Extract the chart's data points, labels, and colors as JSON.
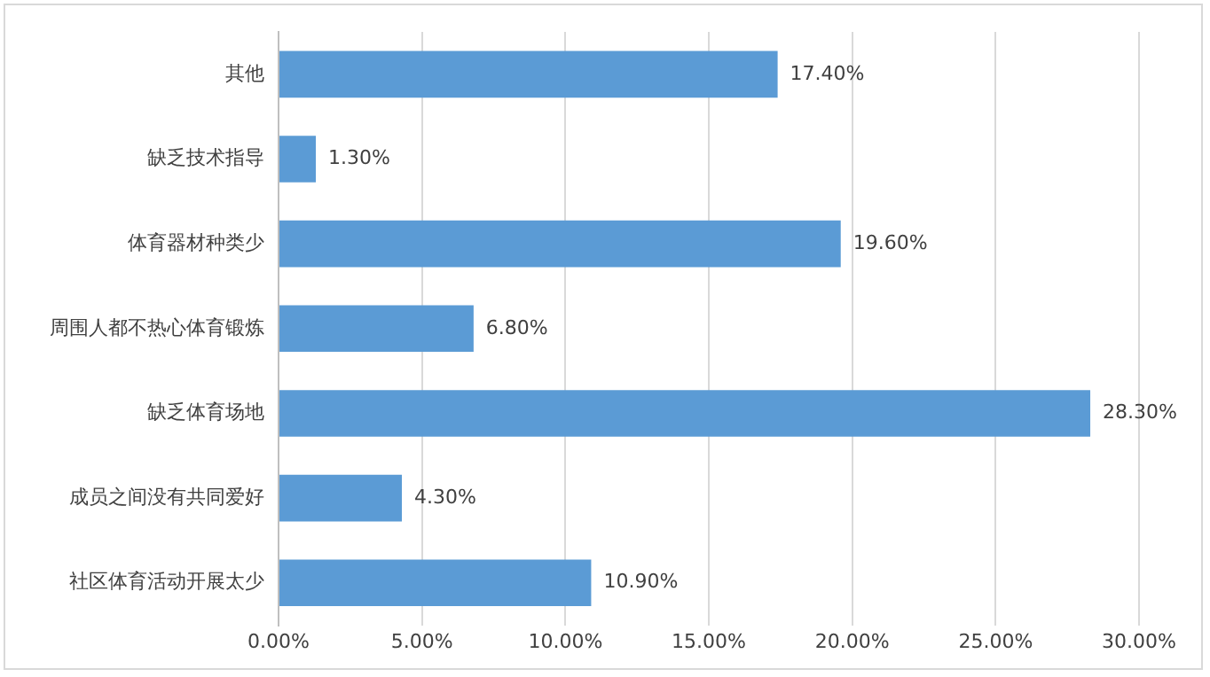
{
  "chart_data": {
    "type": "bar",
    "orientation": "horizontal",
    "categories": [
      "其他",
      "缺乏技术指导",
      "体育器材种类少",
      "周围人都不热心体育锻炼",
      "缺乏体育场地",
      "成员之间没有共同爱好",
      "社区体育活动开展太少"
    ],
    "values": [
      17.4,
      1.3,
      19.6,
      6.8,
      28.3,
      4.3,
      10.9
    ],
    "value_labels": [
      "17.40%",
      "1.30%",
      "19.60%",
      "6.80%",
      "28.30%",
      "4.30%",
      "10.90%"
    ],
    "color": "#5b9bd5",
    "xlim": [
      0,
      30
    ],
    "xticks": [
      {
        "value": 0,
        "label": "0.00%"
      },
      {
        "value": 5,
        "label": "5.00%"
      },
      {
        "value": 10,
        "label": "10.00%"
      },
      {
        "value": 15,
        "label": "15.00%"
      },
      {
        "value": 20,
        "label": "20.00%"
      },
      {
        "value": 25,
        "label": "25.00%"
      },
      {
        "value": 30,
        "label": "30.00%"
      }
    ],
    "grid": "x",
    "legend": false
  }
}
